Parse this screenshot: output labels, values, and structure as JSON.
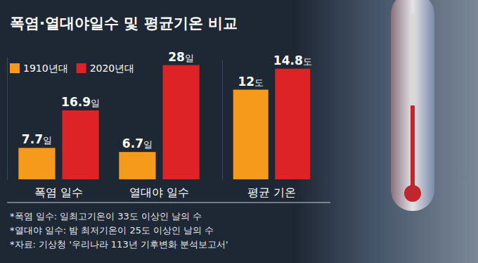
{
  "chart_data": [
    {
      "type": "bar",
      "title": "폭염·열대야일수 및 평균기온 비교",
      "categories": [
        "폭염 일수",
        "열대야 일수"
      ],
      "series": [
        {
          "name": "1910년대",
          "color": "#f59a1b",
          "values": [
            7.7,
            6.7
          ],
          "value_labels": [
            "7.7일",
            "6.7일"
          ]
        },
        {
          "name": "2020년대",
          "color": "#dd2326",
          "values": [
            16.9,
            28
          ],
          "value_labels": [
            "16.9일",
            "28일"
          ]
        }
      ],
      "ylim": [
        0,
        30
      ],
      "tick_labels": false,
      "legend": "top-left",
      "data_labels": true,
      "notes": [
        "*폭염 일수: 일최고기온이 33도 이상인 날의 수",
        "*열대야 일수: 밤 최저기온이 25도 이상인 날의 수",
        "*자료: 기상청 '우리나라 113년 기후변화 분석보고서'"
      ]
    },
    {
      "type": "bar",
      "categories": [
        "평균 기온"
      ],
      "series": [
        {
          "color": "#f59a1b",
          "values": [
            12
          ],
          "value_labels": [
            "12도"
          ]
        },
        {
          "color": "#dd2326",
          "values": [
            14.8
          ],
          "value_labels": [
            "14.8도"
          ]
        }
      ],
      "ylim": [
        0,
        16
      ],
      "tick_labels": false,
      "data_labels": true
    }
  ]
}
